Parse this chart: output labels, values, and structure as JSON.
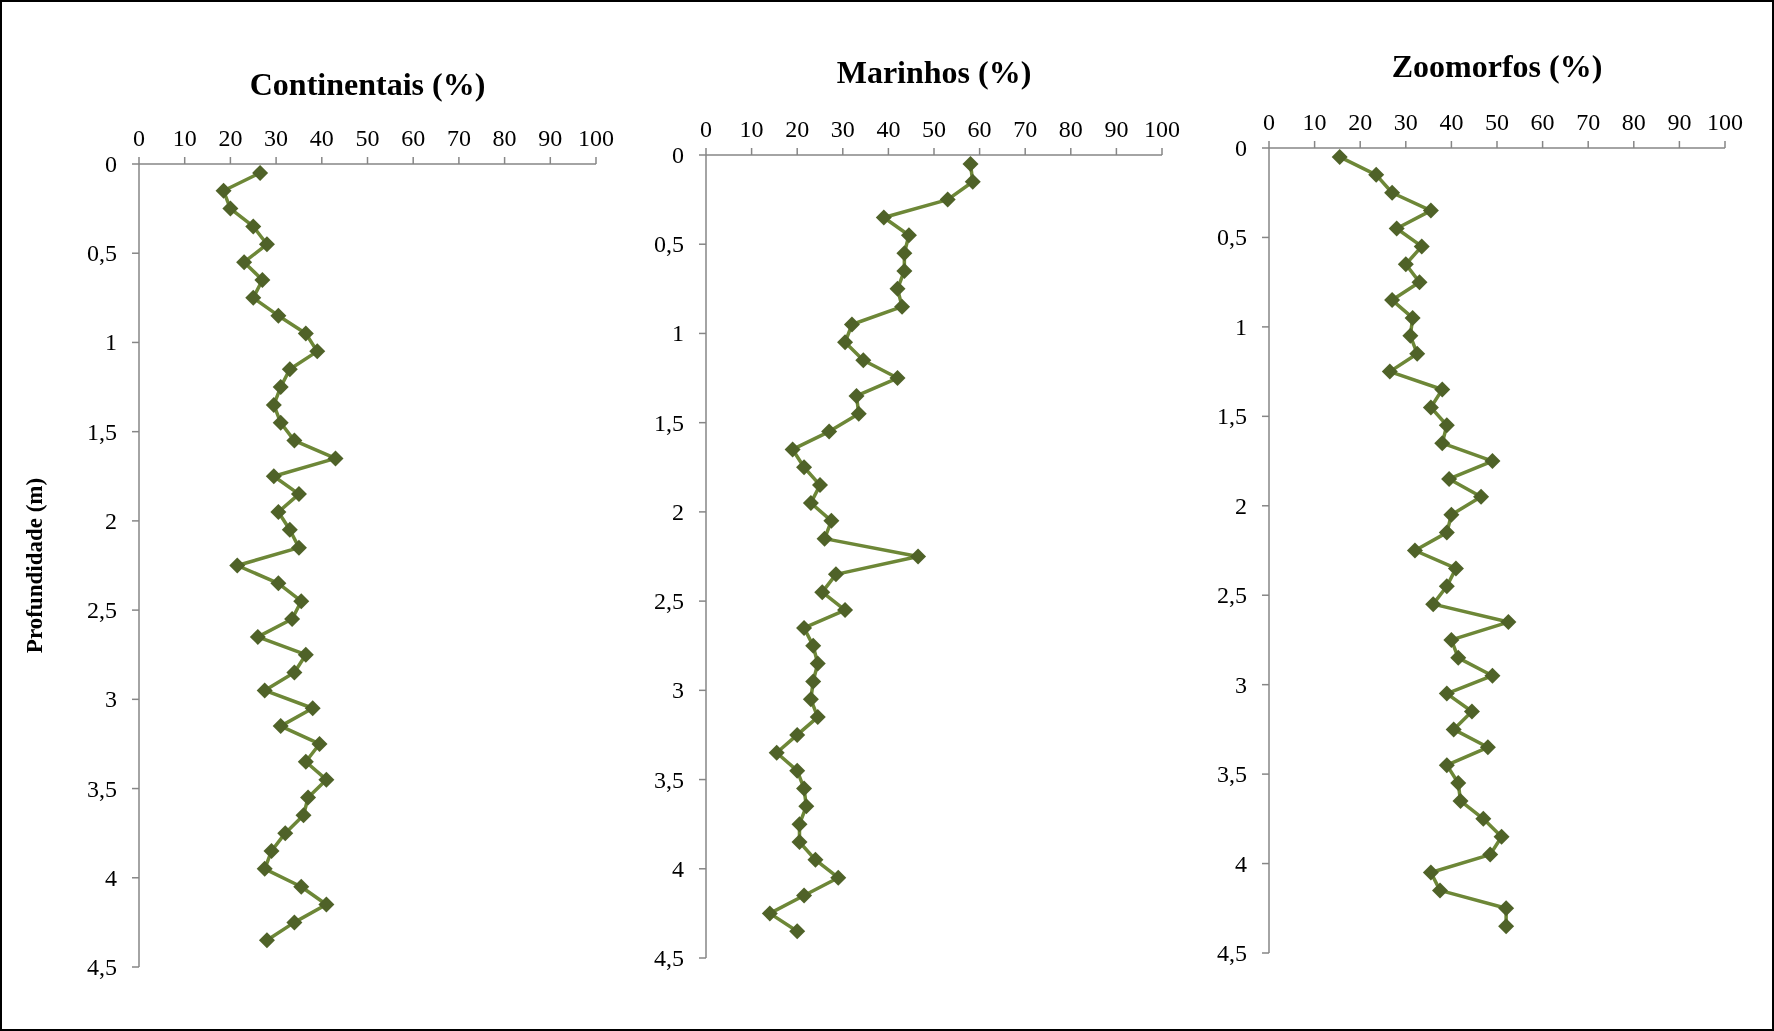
{
  "chart_data": [
    {
      "type": "line",
      "title": "Continentais (%)",
      "ylabel": "Profundidade (m)",
      "xlim": [
        0,
        100
      ],
      "xticks": [
        0,
        10,
        20,
        30,
        40,
        50,
        60,
        70,
        80,
        90,
        100
      ],
      "ylim": [
        4.5,
        0
      ],
      "yticks": [
        0,
        {
          "value": 0.5,
          "label": "0,5"
        },
        1,
        {
          "value": 1.5,
          "label": "1,5"
        },
        2,
        {
          "value": 2.5,
          "label": "2,5"
        },
        3,
        {
          "value": 3.5,
          "label": "3,5"
        },
        4,
        {
          "value": 4.5,
          "label": "4,5"
        }
      ],
      "marker": "diamond",
      "line_style": "solid",
      "series": [
        {
          "color": "#4f6228",
          "x": [
            26.5,
            18.5,
            20,
            25,
            28,
            23,
            27,
            25,
            30.5,
            36.5,
            39,
            33,
            31,
            29.5,
            31,
            34,
            43,
            29.5,
            35,
            30.5,
            33,
            35,
            21.5,
            30.5,
            35.5,
            33.5,
            26,
            36.5,
            34,
            27.5,
            38,
            31,
            39.5,
            36.5,
            41,
            37,
            36,
            32,
            29,
            27.5,
            35.5,
            41,
            34,
            28
          ],
          "values": [
            0.05,
            0.15,
            0.25,
            0.35,
            0.45,
            0.55,
            0.65,
            0.75,
            0.85,
            0.95,
            1.05,
            1.15,
            1.25,
            1.35,
            1.45,
            1.55,
            1.65,
            1.75,
            1.85,
            1.95,
            2.05,
            2.15,
            2.25,
            2.35,
            2.45,
            2.55,
            2.65,
            2.75,
            2.85,
            2.95,
            3.05,
            3.15,
            3.25,
            3.35,
            3.45,
            3.55,
            3.65,
            3.75,
            3.85,
            3.95,
            4.05,
            4.15,
            4.25,
            4.35
          ]
        }
      ]
    },
    {
      "type": "line",
      "title": "Marinhos (%)",
      "xlim": [
        0,
        100
      ],
      "xticks": [
        0,
        10,
        20,
        30,
        40,
        50,
        60,
        70,
        80,
        90,
        100
      ],
      "ylim": [
        4.5,
        0
      ],
      "yticks": [
        0,
        {
          "value": 0.5,
          "label": "0,5"
        },
        1,
        {
          "value": 1.5,
          "label": "1,5"
        },
        2,
        {
          "value": 2.5,
          "label": "2,5"
        },
        3,
        {
          "value": 3.5,
          "label": "3,5"
        },
        4,
        {
          "value": 4.5,
          "label": "4,5"
        }
      ],
      "marker": "diamond",
      "line_style": "solid",
      "series": [
        {
          "color": "#4f6228",
          "x": [
            58,
            58.5,
            53,
            39,
            44.5,
            43.5,
            43.5,
            42,
            43,
            32,
            30.5,
            34.5,
            42,
            33,
            33.5,
            27,
            19,
            21.5,
            25,
            23,
            27.5,
            26,
            46.5,
            28.5,
            25.5,
            30.5,
            21.5,
            23.5,
            24.5,
            23.5,
            23,
            24.5,
            20,
            15.5,
            20,
            21.5,
            22,
            20.5,
            20.5,
            24,
            29,
            21.5,
            14,
            20
          ],
          "values": [
            0.05,
            0.15,
            0.25,
            0.35,
            0.45,
            0.55,
            0.65,
            0.75,
            0.85,
            0.95,
            1.05,
            1.15,
            1.25,
            1.35,
            1.45,
            1.55,
            1.65,
            1.75,
            1.85,
            1.95,
            2.05,
            2.15,
            2.25,
            2.35,
            2.45,
            2.55,
            2.65,
            2.75,
            2.85,
            2.95,
            3.05,
            3.15,
            3.25,
            3.35,
            3.45,
            3.55,
            3.65,
            3.75,
            3.85,
            3.95,
            4.05,
            4.15,
            4.25,
            4.35
          ]
        }
      ]
    },
    {
      "type": "line",
      "title": "Zoomorfos (%)",
      "xlim": [
        0,
        100
      ],
      "xticks": [
        0,
        10,
        20,
        30,
        40,
        50,
        60,
        70,
        80,
        90,
        100
      ],
      "ylim": [
        4.5,
        0
      ],
      "yticks": [
        0,
        {
          "value": 0.5,
          "label": "0,5"
        },
        1,
        {
          "value": 1.5,
          "label": "1,5"
        },
        2,
        {
          "value": 2.5,
          "label": "2,5"
        },
        3,
        {
          "value": 3.5,
          "label": "3,5"
        },
        4,
        {
          "value": 4.5,
          "label": "4,5"
        }
      ],
      "marker": "diamond",
      "line_style": "solid",
      "series": [
        {
          "color": "#4f6228",
          "x": [
            15.5,
            23.5,
            27,
            35.5,
            28,
            33.5,
            30,
            33,
            27,
            31.5,
            31,
            32.5,
            26.5,
            38,
            35.5,
            39,
            38,
            49,
            39.5,
            46.5,
            40,
            39,
            32,
            41,
            39,
            36,
            52.5,
            40,
            41.5,
            49,
            39,
            44.5,
            40.5,
            48,
            39,
            41.5,
            42,
            47,
            51,
            48.5,
            35.5,
            37.5,
            52,
            52
          ],
          "values": [
            0.05,
            0.15,
            0.25,
            0.35,
            0.45,
            0.55,
            0.65,
            0.75,
            0.85,
            0.95,
            1.05,
            1.15,
            1.25,
            1.35,
            1.45,
            1.55,
            1.65,
            1.75,
            1.85,
            1.95,
            2.05,
            2.15,
            2.25,
            2.35,
            2.45,
            2.55,
            2.65,
            2.75,
            2.85,
            2.95,
            3.05,
            3.15,
            3.25,
            3.35,
            3.45,
            3.55,
            3.65,
            3.75,
            3.85,
            3.95,
            4.05,
            4.15,
            4.25,
            4.35
          ]
        }
      ]
    }
  ]
}
